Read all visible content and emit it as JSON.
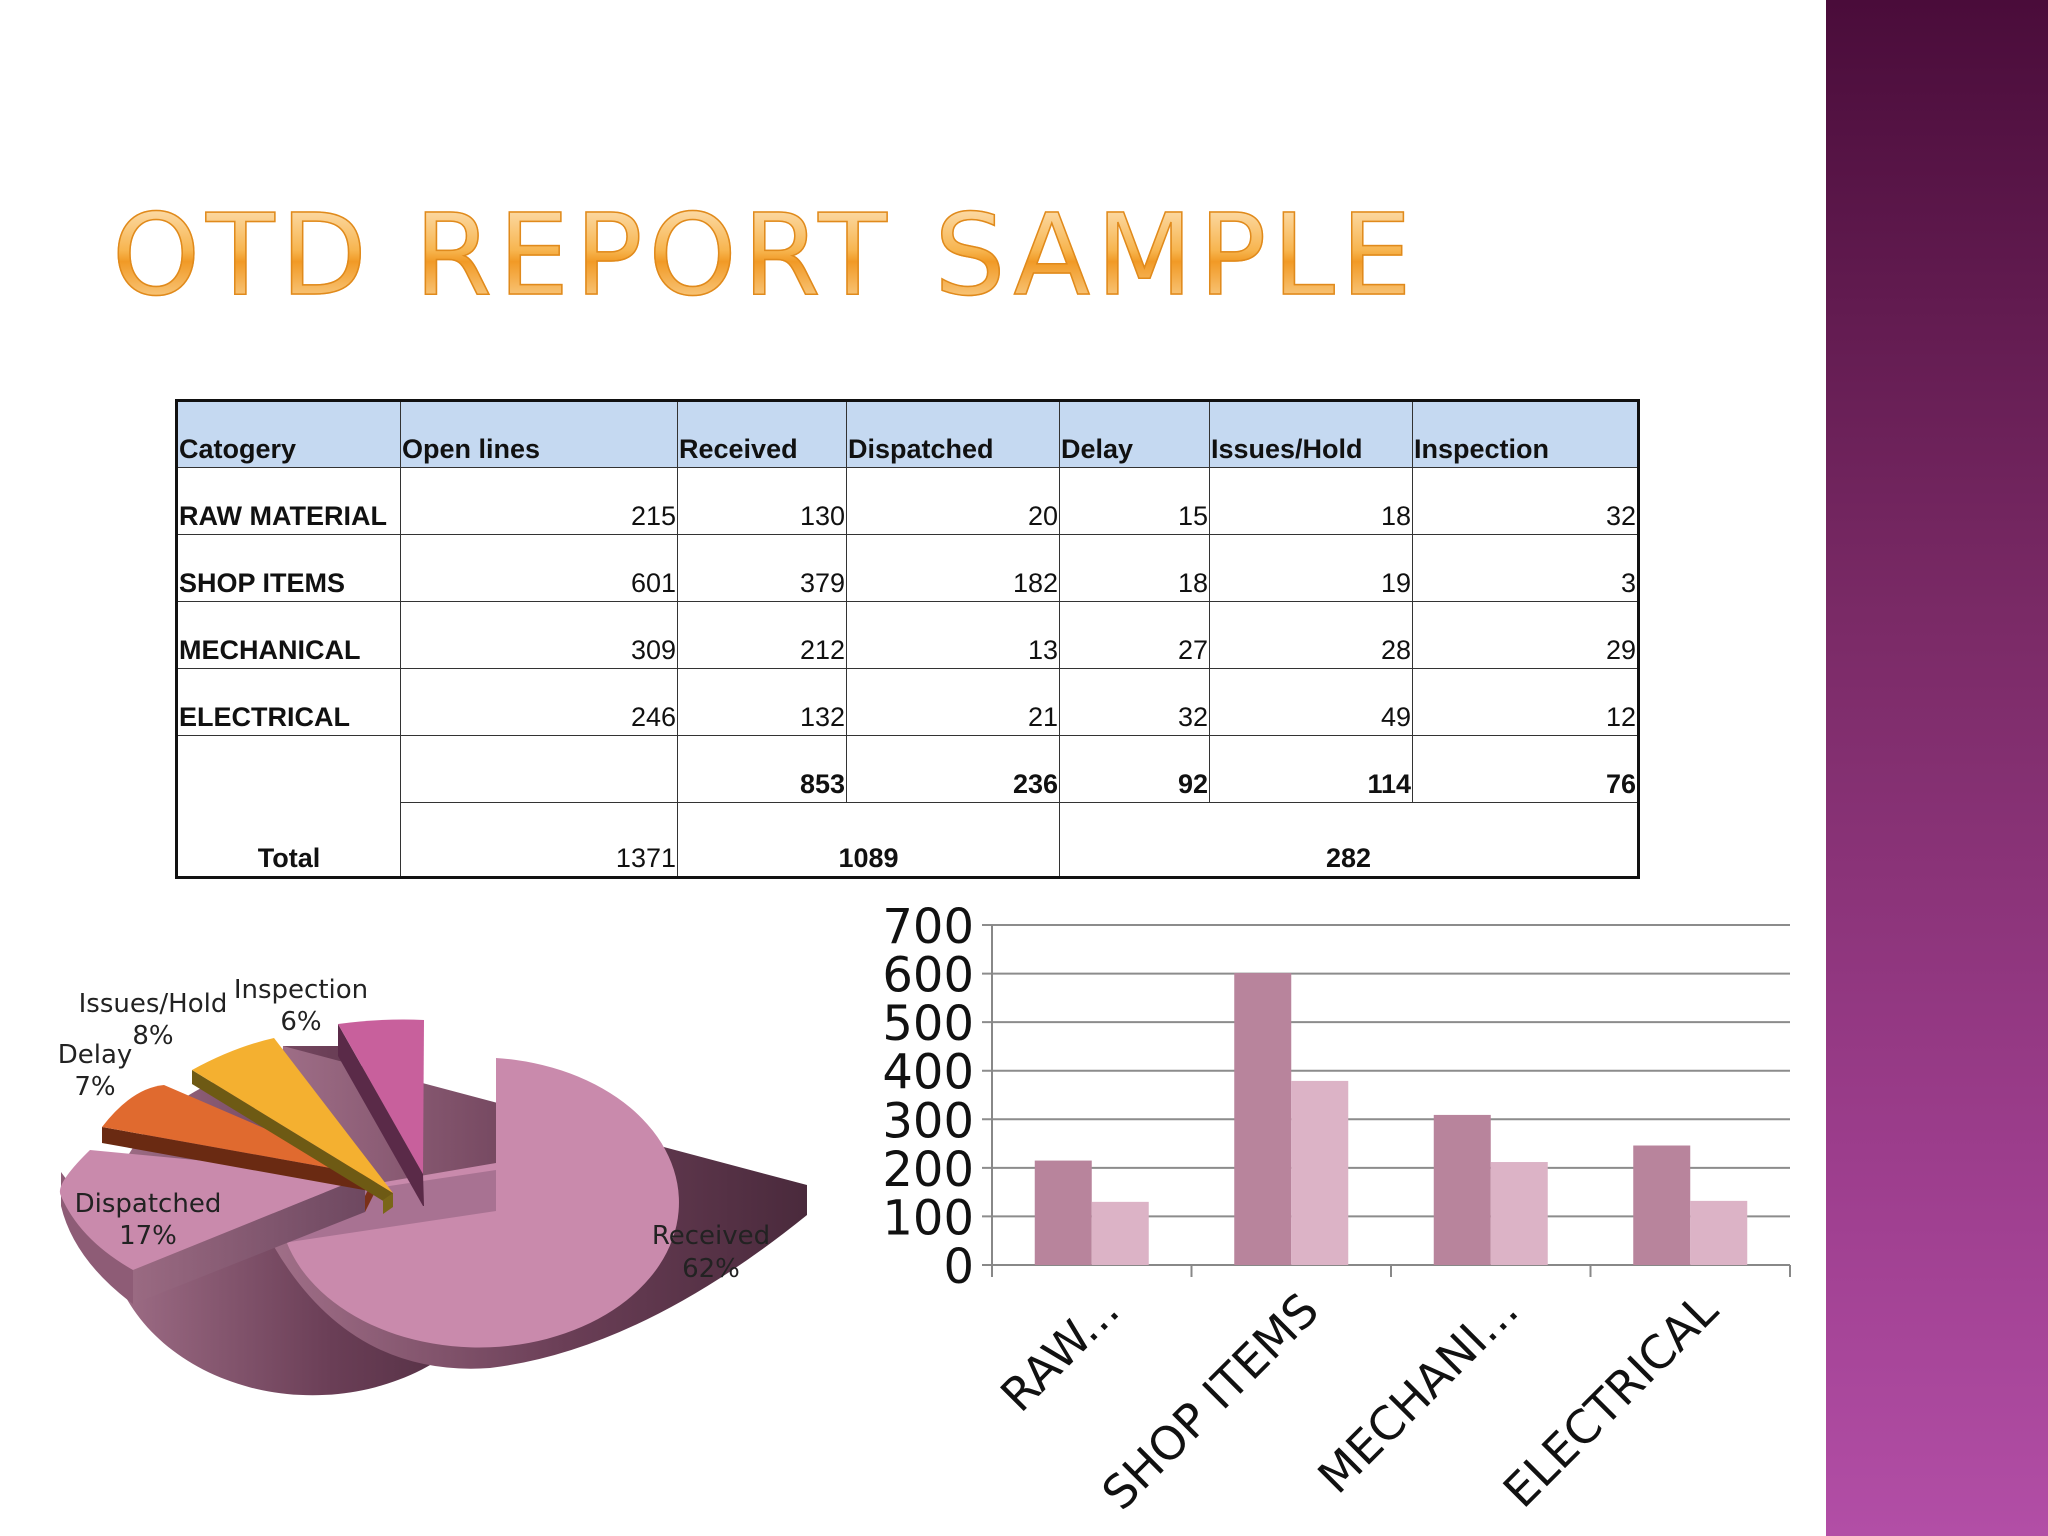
{
  "title": "OTD REPORT SAMPLE",
  "table": {
    "headers": [
      "Catogery",
      "Open lines",
      "Received",
      "Dispatched",
      "Delay",
      "Issues/Hold",
      "Inspection"
    ],
    "rows": [
      {
        "category": "RAW MATERIAL",
        "values": [
          "215",
          "130",
          "20",
          "15",
          "18",
          "32"
        ]
      },
      {
        "category": "SHOP ITEMS",
        "values": [
          "601",
          "379",
          "182",
          "18",
          "19",
          "3"
        ]
      },
      {
        "category": "MECHANICAL",
        "values": [
          "309",
          "212",
          "13",
          "27",
          "28",
          "29"
        ]
      },
      {
        "category": "ELECTRICAL",
        "values": [
          "246",
          "132",
          "21",
          "32",
          "49",
          "12"
        ]
      }
    ],
    "subtotals": [
      "853",
      "236",
      "92",
      "114",
      "76"
    ],
    "total": {
      "label": "Total",
      "open_lines": "1371",
      "received_dispatched": "1089",
      "delay_issues_inspection": "282"
    }
  },
  "chart_data": [
    {
      "type": "pie",
      "slices": [
        {
          "label": "Received",
          "percent_label": "62%",
          "value": 62,
          "color": "#c98aac"
        },
        {
          "label": "Dispatched",
          "percent_label": "17%",
          "value": 17,
          "color": "#c98aac"
        },
        {
          "label": "Delay",
          "percent_label": "7%",
          "value": 7,
          "color": "#e06a2f"
        },
        {
          "label": "Issues/Hold",
          "percent_label": "8%",
          "value": 8,
          "color": "#f4b030"
        },
        {
          "label": "Inspection",
          "percent_label": "6%",
          "value": 6,
          "color": "#c8609c"
        }
      ],
      "style": "3d-exploded"
    },
    {
      "type": "bar",
      "categories": [
        "RAW...",
        "SHOP ITEMS",
        "MECHANI...",
        "ELECTRICAL"
      ],
      "series": [
        {
          "values": [
            215,
            601,
            309,
            246
          ],
          "color": "#b8849c"
        },
        {
          "values": [
            130,
            379,
            212,
            132
          ],
          "color": "#dcb3c6"
        }
      ],
      "ylim": [
        0,
        700
      ],
      "yticks": [
        0,
        100,
        200,
        300,
        400,
        500,
        600,
        700
      ],
      "grid": true,
      "legend": "none"
    }
  ]
}
